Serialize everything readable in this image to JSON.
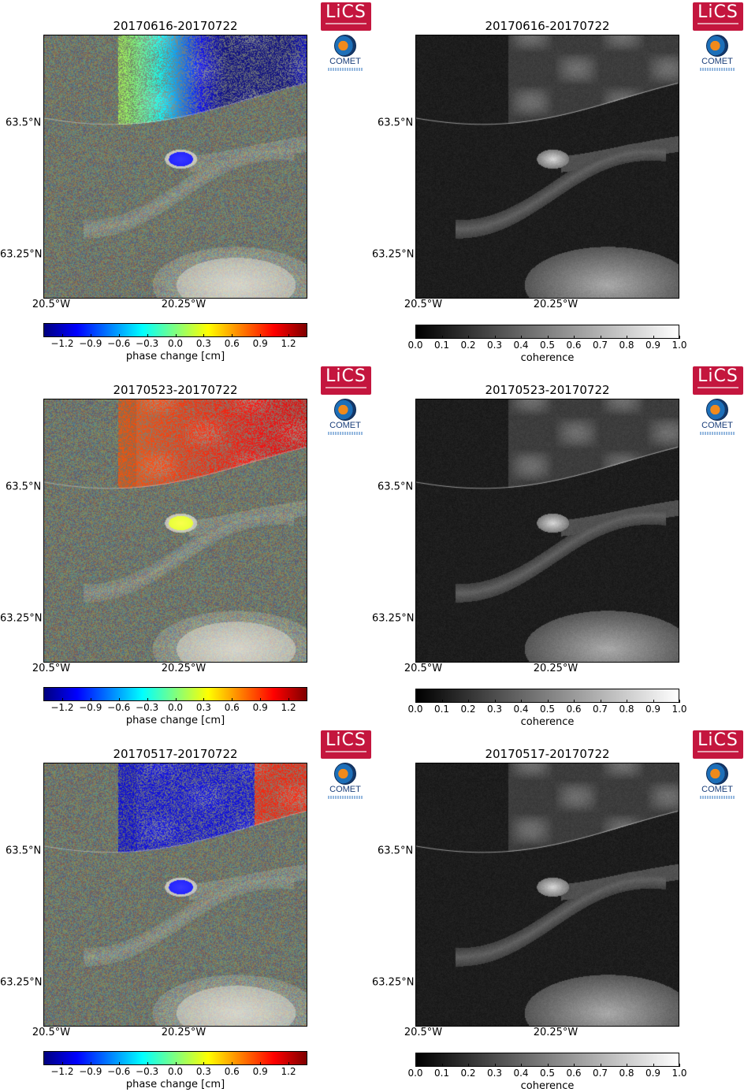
{
  "map": {
    "x_ticks": [
      "20.5°W",
      "20.25°W"
    ],
    "y_ticks": [
      "63.5°N",
      "63.25°N"
    ]
  },
  "logos": {
    "lics": "LiCS",
    "comet": "COMET"
  },
  "phase_colorbar": {
    "label": "phase change [cm]",
    "ticks": [
      "−1.2",
      "−0.9",
      "−0.6",
      "−0.3",
      "0.0",
      "0.3",
      "0.6",
      "0.9",
      "1.2"
    ],
    "range": [
      -1.4,
      1.4
    ],
    "colormap": "jet",
    "colors": [
      "#00007f",
      "#0000ff",
      "#007fff",
      "#00ffff",
      "#7fff7f",
      "#ffff00",
      "#ff7f00",
      "#ff0000",
      "#7f0000"
    ]
  },
  "coherence_colorbar": {
    "label": "coherence",
    "ticks": [
      "0.0",
      "0.1",
      "0.2",
      "0.3",
      "0.4",
      "0.5",
      "0.6",
      "0.7",
      "0.8",
      "0.9",
      "1.0"
    ],
    "range": [
      0,
      1
    ],
    "colormap": "gray",
    "colors": [
      "#000000",
      "#ffffff"
    ]
  },
  "rows": [
    {
      "interferogram": {
        "title": "20170616-20170722"
      },
      "coherence": {
        "title": "20170616-20170722"
      }
    },
    {
      "interferogram": {
        "title": "20170523-20170722"
      },
      "coherence": {
        "title": "20170523-20170722"
      }
    },
    {
      "interferogram": {
        "title": "20170517-20170722"
      },
      "coherence": {
        "title": "20170517-20170722"
      }
    }
  ]
}
